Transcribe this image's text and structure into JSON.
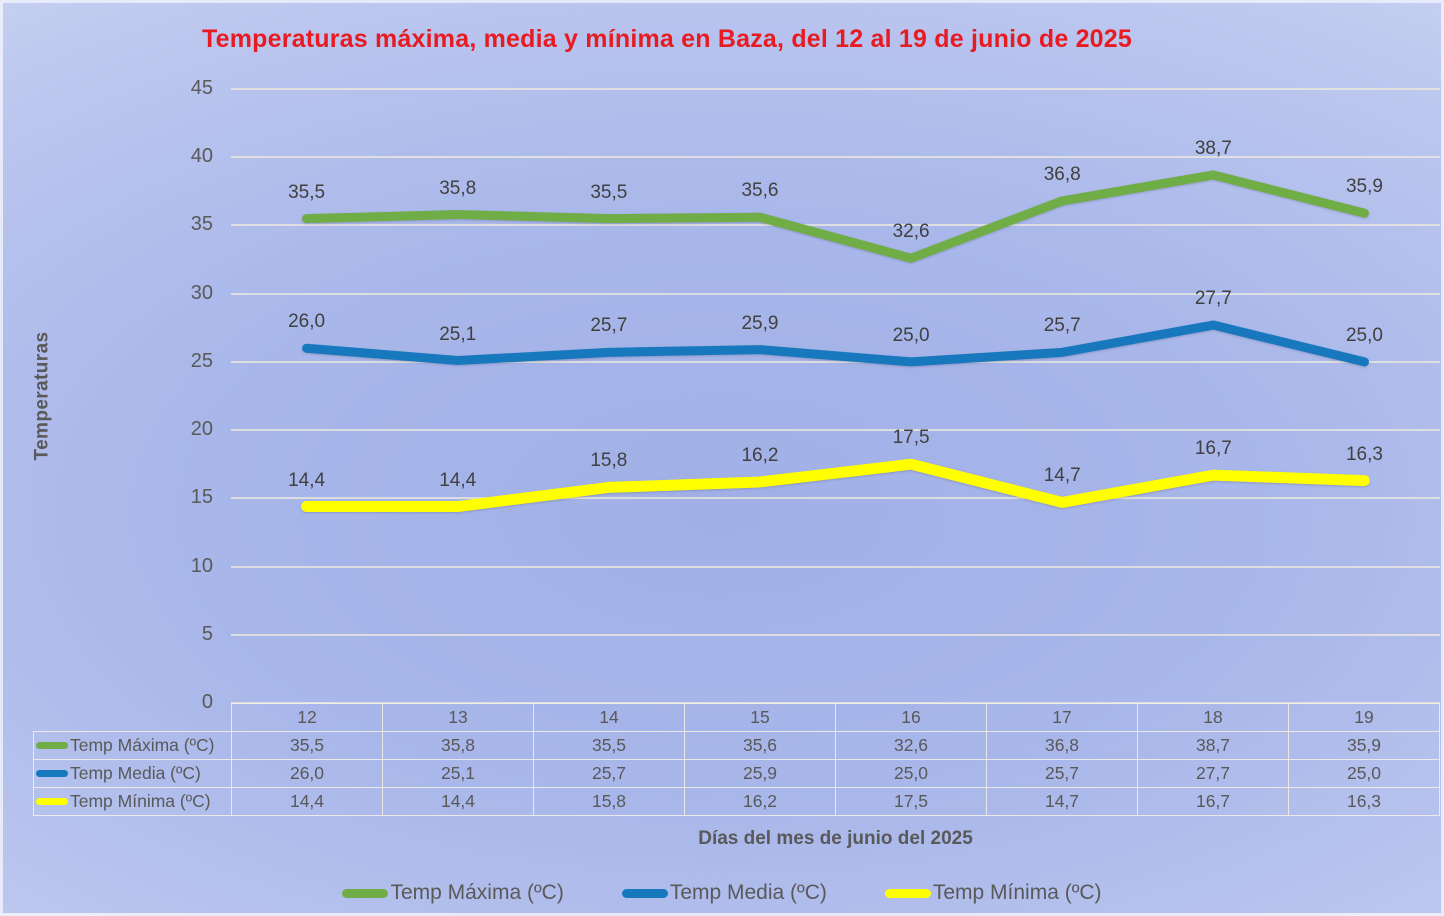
{
  "colors": {
    "title": "#e81b22",
    "text": "#595959",
    "data_label": "#404040",
    "gridline": "#eae7dd",
    "series_max": "#70ad47",
    "series_media": "#1878be",
    "series_min": "#ffff00"
  },
  "chart_data": {
    "type": "line",
    "title": "Temperaturas máxima, media y mínima en Baza, del 12 al 19 de junio de 2025",
    "categories": [
      12,
      13,
      14,
      15,
      16,
      17,
      18,
      19
    ],
    "series": [
      {
        "name": "Temp Máxima (ºC)",
        "color": "#70ad47",
        "stroke_width": 9,
        "values": [
          35.5,
          35.8,
          35.5,
          35.6,
          32.6,
          36.8,
          38.7,
          35.9
        ]
      },
      {
        "name": "Temp Media (ºC)",
        "color": "#1878be",
        "stroke_width": 9,
        "values": [
          26.0,
          25.1,
          25.7,
          25.9,
          25.0,
          25.7,
          27.7,
          25.0
        ]
      },
      {
        "name": "Temp Mínima (ºC)",
        "color": "#ffff00",
        "stroke_width": 11,
        "values": [
          14.4,
          14.4,
          15.8,
          16.2,
          17.5,
          14.7,
          16.7,
          16.3
        ]
      }
    ],
    "xlabel": "Días del mes de junio del 2025",
    "ylabel": "Temperaturas",
    "ylim": [
      0,
      45
    ],
    "yticks": [
      45,
      40,
      35,
      30,
      25,
      20,
      15,
      10,
      5,
      0
    ],
    "grid": true,
    "data_labels": true,
    "data_table_shown": true,
    "legend_position": "bottom",
    "decimal_separator": ","
  }
}
